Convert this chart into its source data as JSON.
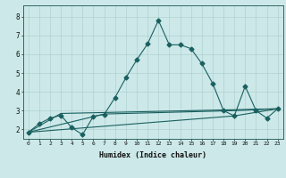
{
  "xlabel": "Humidex (Indice chaleur)",
  "bg_color": "#cce8e8",
  "grid_color": "#aacccc",
  "line_color": "#1a6060",
  "xlim": [
    -0.5,
    23.5
  ],
  "ylim": [
    1.5,
    8.6
  ],
  "xticks": [
    0,
    1,
    2,
    3,
    4,
    5,
    6,
    7,
    8,
    9,
    10,
    11,
    12,
    13,
    14,
    15,
    16,
    17,
    18,
    19,
    20,
    21,
    22,
    23
  ],
  "yticks": [
    2,
    3,
    4,
    5,
    6,
    7,
    8
  ],
  "series1_x": [
    0,
    1,
    2,
    3,
    4,
    5,
    6,
    7,
    8,
    9,
    10,
    11,
    12,
    13,
    14,
    15,
    16,
    17,
    18,
    19,
    20,
    21,
    22,
    23
  ],
  "series1_y": [
    1.85,
    2.3,
    2.6,
    2.75,
    2.1,
    1.72,
    2.7,
    2.8,
    3.7,
    4.75,
    5.7,
    6.55,
    7.8,
    6.5,
    6.5,
    6.3,
    5.5,
    4.45,
    3.0,
    2.72,
    4.3,
    3.0,
    2.6,
    3.1
  ],
  "series2_x": [
    0,
    3,
    23
  ],
  "series2_y": [
    1.85,
    2.85,
    3.1
  ],
  "series3_x": [
    0,
    7,
    19,
    23
  ],
  "series3_y": [
    1.85,
    2.82,
    3.0,
    3.1
  ],
  "series4_x": [
    0,
    19,
    23
  ],
  "series4_y": [
    1.85,
    2.72,
    3.1
  ]
}
